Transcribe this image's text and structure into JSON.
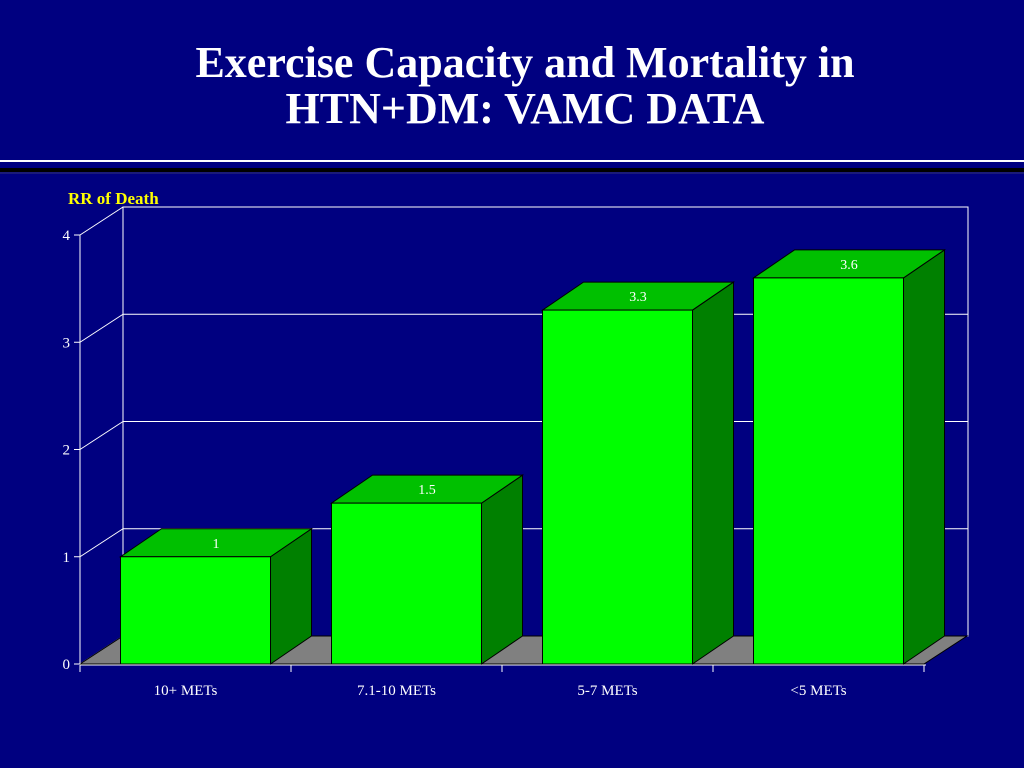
{
  "slide": {
    "title_line1": "Exercise Capacity and Mortality in",
    "title_line2": "HTN+DM: VAMC DATA"
  },
  "colors": {
    "background": "#000080",
    "bar_front": "#00ff00",
    "bar_top": "#00c000",
    "bar_side": "#008000",
    "floor": "#808080",
    "ylabel": "#ffff00",
    "text": "#ffffff"
  },
  "chart_data": {
    "type": "bar",
    "ylabel": "RR of Death",
    "xlabel": "",
    "categories": [
      "10+ METs",
      "7.1-10 METs",
      "5-7 METs",
      "<5 METs"
    ],
    "values": [
      1,
      1.5,
      3.3,
      3.6
    ],
    "data_labels": [
      "1",
      "1.5",
      "3.3",
      "3.6"
    ],
    "ylim": [
      0,
      4
    ],
    "yticks": [
      0,
      1,
      2,
      3,
      4
    ],
    "grid": true,
    "three_d": true,
    "legend": "none"
  }
}
